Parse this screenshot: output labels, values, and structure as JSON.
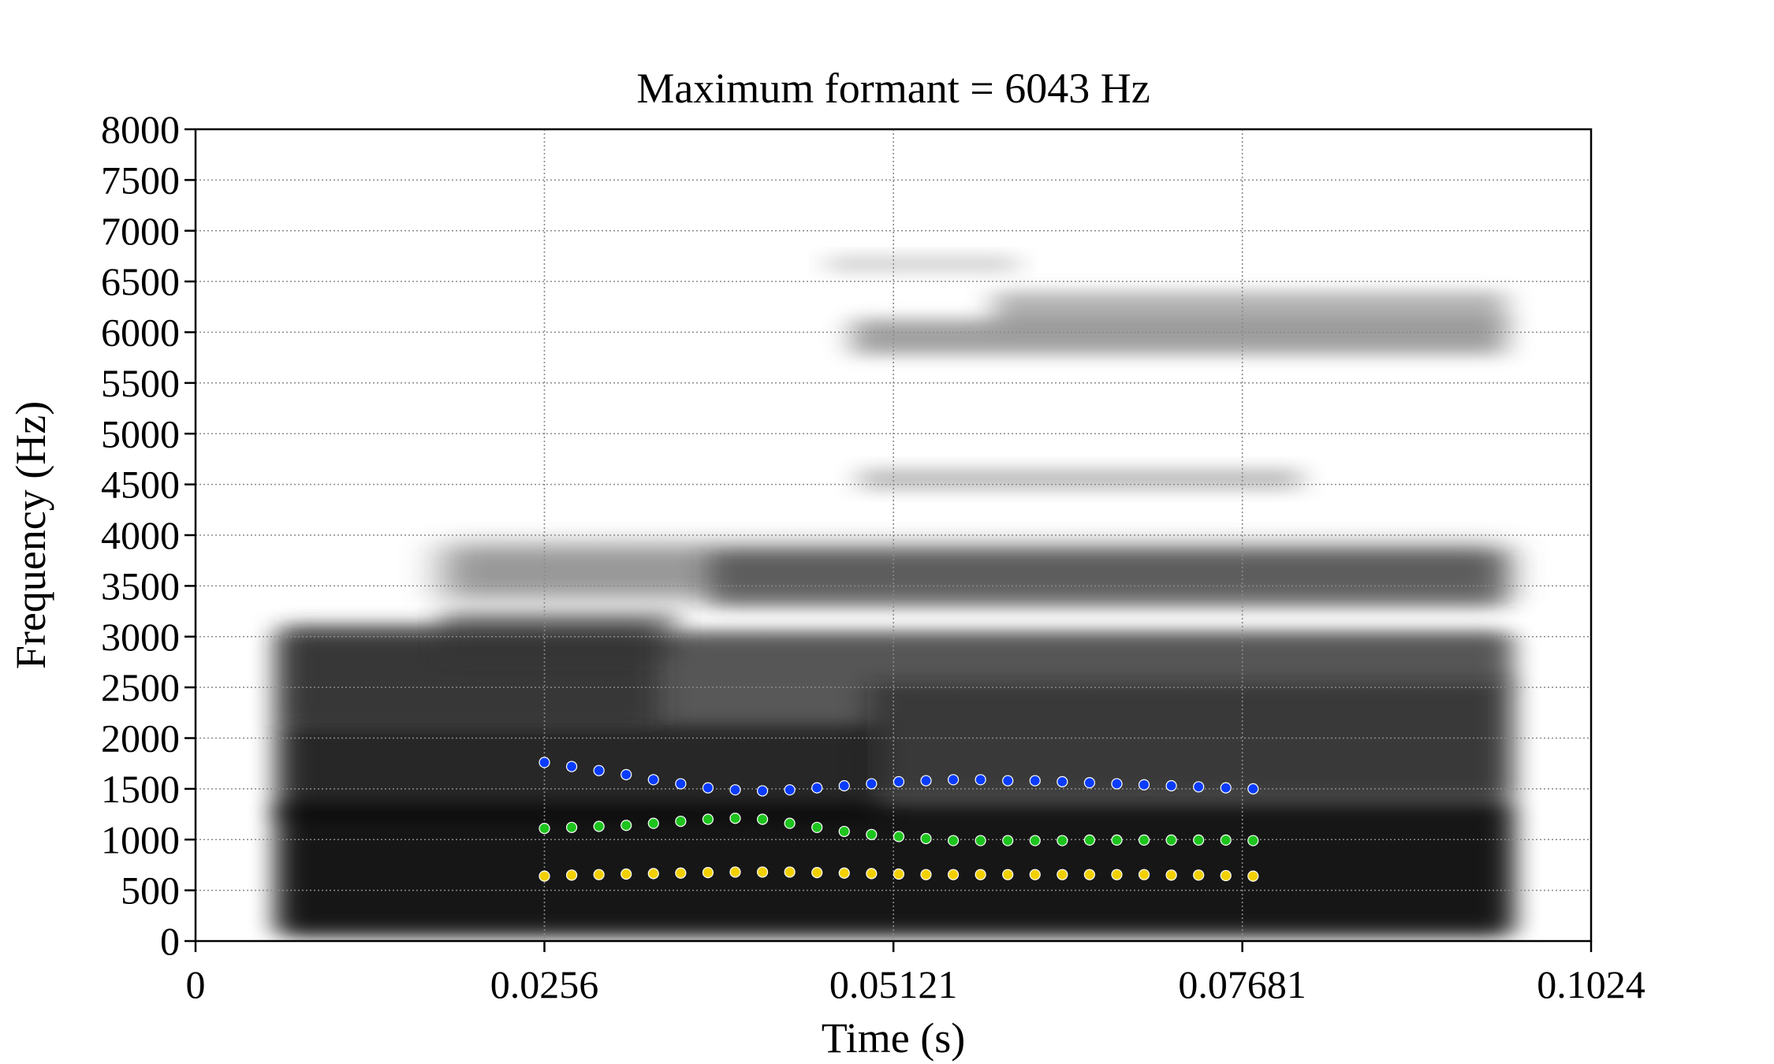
{
  "chart_data": {
    "type": "scatter",
    "title": "Maximum formant = 6043 Hz",
    "xlabel": "Time (s)",
    "ylabel": "Frequency (Hz)",
    "xlim": [
      0,
      0.1024
    ],
    "ylim": [
      0,
      8000
    ],
    "x_ticks": [
      "0",
      "0.0256",
      "0.05121",
      "0.07681",
      "0.1024"
    ],
    "x_tick_values": [
      0,
      0.0256,
      0.05121,
      0.07681,
      0.1024
    ],
    "y_ticks": [
      "0",
      "500",
      "1000",
      "1500",
      "2000",
      "2500",
      "3000",
      "3500",
      "4000",
      "4500",
      "5000",
      "5500",
      "6000",
      "6500",
      "7000",
      "7500",
      "8000"
    ],
    "grid": true,
    "background": "spectrogram (grayscale)",
    "x": [
      0.0256,
      0.0276,
      0.0296,
      0.0316,
      0.0336,
      0.0356,
      0.0376,
      0.0396,
      0.0416,
      0.0436,
      0.0456,
      0.0476,
      0.0496,
      0.0516,
      0.0536,
      0.0556,
      0.0576,
      0.0596,
      0.0616,
      0.0636,
      0.0656,
      0.0676,
      0.0696,
      0.0716,
      0.0736,
      0.0756,
      0.0776
    ],
    "series": [
      {
        "color": "#f2d000",
        "values": [
          640,
          650,
          655,
          660,
          665,
          670,
          675,
          680,
          680,
          680,
          675,
          670,
          665,
          660,
          655,
          655,
          655,
          655,
          655,
          655,
          655,
          655,
          655,
          650,
          650,
          645,
          640
        ]
      },
      {
        "color": "#1ec41e",
        "values": [
          1110,
          1120,
          1130,
          1140,
          1160,
          1180,
          1200,
          1210,
          1200,
          1160,
          1120,
          1080,
          1050,
          1030,
          1010,
          990,
          990,
          990,
          990,
          990,
          995,
          995,
          995,
          995,
          995,
          995,
          990
        ]
      },
      {
        "color": "#0a3cff",
        "values": [
          1760,
          1720,
          1680,
          1640,
          1590,
          1550,
          1510,
          1490,
          1480,
          1490,
          1510,
          1530,
          1550,
          1570,
          1580,
          1590,
          1590,
          1580,
          1580,
          1570,
          1560,
          1550,
          1540,
          1530,
          1520,
          1510,
          1500
        ]
      }
    ]
  }
}
